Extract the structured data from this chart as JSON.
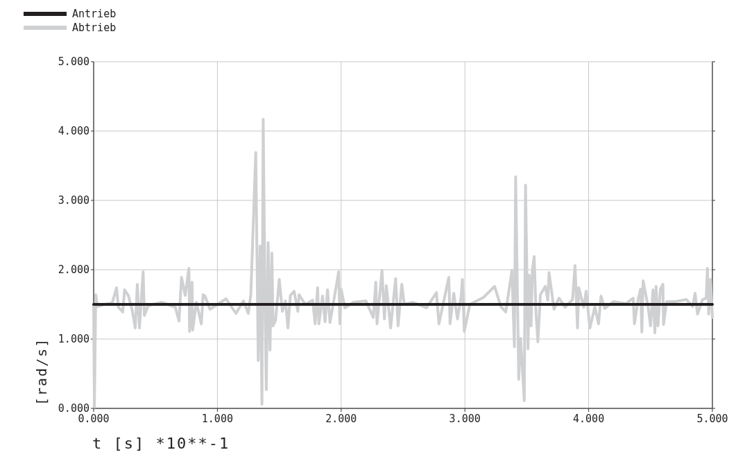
{
  "chart_data": {
    "type": "line",
    "xlabel": "t [s] *10**-1",
    "ylabel": "[rad/s]",
    "legend": "top left",
    "grid": true,
    "xlim": [
      0,
      5
    ],
    "ylim": [
      0,
      5
    ],
    "xticks": [
      {
        "value": 0,
        "label": "0.000"
      },
      {
        "value": 1,
        "label": "1.000"
      },
      {
        "value": 2,
        "label": "2.000"
      },
      {
        "value": 3,
        "label": "3.000"
      },
      {
        "value": 4,
        "label": "4.000"
      },
      {
        "value": 5,
        "label": "5.000"
      }
    ],
    "yticks": [
      {
        "value": 0,
        "label": "0.000"
      },
      {
        "value": 1,
        "label": "1.000"
      },
      {
        "value": 2,
        "label": "2.000"
      },
      {
        "value": 3,
        "label": "3.000"
      },
      {
        "value": 4,
        "label": "4.000"
      },
      {
        "value": 5,
        "label": "5.000"
      }
    ],
    "series": [
      {
        "name": "Abtrieb",
        "color": "#cfd0d2",
        "x": [
          0,
          0.006,
          0.017,
          0.03,
          0.09,
          0.15,
          0.185,
          0.2,
          0.235,
          0.25,
          0.28,
          0.31,
          0.336,
          0.353,
          0.37,
          0.4,
          0.41,
          0.44,
          0.55,
          0.66,
          0.69,
          0.71,
          0.74,
          0.77,
          0.775,
          0.795,
          0.8,
          0.83,
          0.87,
          0.885,
          0.9,
          0.94,
          1.0,
          1.07,
          1.15,
          1.21,
          1.25,
          1.27,
          1.31,
          1.33,
          1.345,
          1.36,
          1.37,
          1.385,
          1.395,
          1.41,
          1.425,
          1.44,
          1.45,
          1.47,
          1.5,
          1.525,
          1.55,
          1.57,
          1.59,
          1.62,
          1.65,
          1.66,
          1.71,
          1.77,
          1.79,
          1.81,
          1.82,
          1.85,
          1.87,
          1.89,
          1.91,
          1.94,
          1.98,
          1.99,
          2.0,
          2.03,
          2.1,
          2.2,
          2.26,
          2.28,
          2.29,
          2.33,
          2.35,
          2.365,
          2.38,
          2.4,
          2.44,
          2.46,
          2.49,
          2.51,
          2.58,
          2.69,
          2.77,
          2.79,
          2.87,
          2.88,
          2.91,
          2.94,
          2.97,
          2.98,
          2.995,
          3.04,
          3.15,
          3.24,
          3.29,
          3.33,
          3.38,
          3.4,
          3.41,
          3.435,
          3.45,
          3.48,
          3.49,
          3.51,
          3.52,
          3.535,
          3.545,
          3.56,
          3.575,
          3.59,
          3.61,
          3.65,
          3.67,
          3.68,
          3.72,
          3.76,
          3.81,
          3.87,
          3.89,
          3.91,
          3.92,
          3.96,
          3.98,
          4.01,
          4.05,
          4.08,
          4.1,
          4.13,
          4.2,
          4.3,
          4.36,
          4.37,
          4.4,
          4.42,
          4.43,
          4.44,
          4.48,
          4.5,
          4.52,
          4.535,
          4.545,
          4.56,
          4.58,
          4.6,
          4.605,
          4.63,
          4.7,
          4.79,
          4.84,
          4.86,
          4.88,
          4.92,
          4.95,
          4.96,
          4.97,
          4.985,
          5.0
        ],
        "values": [
          1.5,
          0.02,
          1.64,
          1.47,
          1.5,
          1.52,
          1.74,
          1.46,
          1.39,
          1.71,
          1.63,
          1.43,
          1.16,
          1.79,
          1.16,
          1.97,
          1.34,
          1.48,
          1.53,
          1.46,
          1.26,
          1.89,
          1.63,
          2.02,
          1.11,
          1.82,
          1.13,
          1.53,
          1.22,
          1.64,
          1.62,
          1.43,
          1.5,
          1.58,
          1.37,
          1.55,
          1.37,
          1.64,
          3.69,
          0.69,
          2.34,
          0.06,
          4.17,
          1.55,
          0.27,
          2.39,
          0.84,
          2.24,
          1.19,
          1.27,
          1.86,
          1.4,
          1.55,
          1.16,
          1.63,
          1.69,
          1.4,
          1.64,
          1.5,
          1.56,
          1.22,
          1.74,
          1.22,
          1.62,
          1.25,
          1.71,
          1.24,
          1.55,
          1.97,
          1.22,
          1.72,
          1.45,
          1.53,
          1.55,
          1.31,
          1.82,
          1.22,
          1.99,
          1.29,
          1.77,
          1.52,
          1.16,
          1.87,
          1.19,
          1.79,
          1.5,
          1.53,
          1.45,
          1.67,
          1.22,
          1.89,
          1.22,
          1.66,
          1.29,
          1.62,
          1.86,
          1.11,
          1.5,
          1.6,
          1.76,
          1.47,
          1.39,
          1.99,
          0.89,
          3.34,
          0.42,
          1.01,
          0.11,
          3.22,
          0.86,
          1.92,
          1.19,
          1.99,
          2.19,
          1.36,
          0.96,
          1.64,
          1.76,
          1.56,
          1.96,
          1.43,
          1.59,
          1.46,
          1.57,
          2.06,
          1.16,
          1.74,
          1.46,
          1.69,
          1.16,
          1.46,
          1.22,
          1.62,
          1.44,
          1.54,
          1.51,
          1.59,
          1.22,
          1.57,
          1.72,
          1.1,
          1.84,
          1.47,
          1.19,
          1.71,
          1.09,
          1.76,
          1.19,
          1.72,
          1.79,
          1.21,
          1.54,
          1.54,
          1.57,
          1.47,
          1.66,
          1.36,
          1.57,
          1.59,
          2.02,
          1.36,
          1.86,
          1.31
        ]
      },
      {
        "name": "Antrieb",
        "color": "#231f20",
        "x": [
          0,
          5
        ],
        "values": [
          1.5,
          1.5
        ]
      }
    ]
  }
}
